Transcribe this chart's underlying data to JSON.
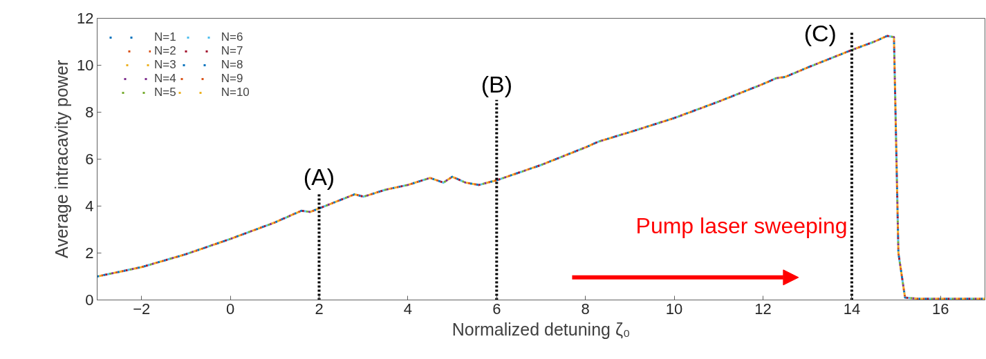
{
  "chart_data": {
    "type": "line",
    "xlabel": "Normalized detuning ζ₀",
    "ylabel": "Average intracavity power",
    "xlim": [
      -3,
      17
    ],
    "ylim": [
      0,
      12
    ],
    "xticks": [
      -2,
      0,
      2,
      4,
      6,
      8,
      10,
      12,
      14,
      16
    ],
    "yticks": [
      0,
      2,
      4,
      6,
      8,
      10,
      12
    ],
    "grid": false,
    "legend": "top left",
    "line_style": "dotted",
    "marker": "none",
    "x": [
      -3,
      -2,
      -1,
      0,
      1,
      1.6,
      1.8,
      2,
      2.4,
      2.8,
      3,
      3.5,
      4,
      4.5,
      4.8,
      5,
      5.3,
      5.6,
      6,
      7,
      8,
      8.3,
      9,
      10,
      11,
      12,
      12.3,
      12.5,
      13,
      14,
      14.5,
      14.8,
      14.95,
      15.05,
      15.2,
      15.5,
      16,
      17
    ],
    "series": [
      {
        "name": "N=1",
        "color": "#0072bd",
        "values": [
          1.0,
          1.4,
          1.95,
          2.6,
          3.3,
          3.8,
          3.75,
          3.9,
          4.2,
          4.5,
          4.4,
          4.7,
          4.9,
          5.2,
          5.0,
          5.25,
          5.0,
          4.9,
          5.1,
          5.75,
          6.5,
          6.75,
          7.15,
          7.75,
          8.45,
          9.2,
          9.45,
          9.5,
          9.9,
          10.65,
          11.0,
          11.25,
          11.2,
          2.0,
          0.1,
          0.05,
          0.05,
          0.05
        ]
      },
      {
        "name": "N=2",
        "color": "#d95319",
        "values": [
          1.0,
          1.4,
          1.95,
          2.6,
          3.3,
          3.8,
          3.75,
          3.9,
          4.2,
          4.5,
          4.4,
          4.7,
          4.9,
          5.2,
          5.0,
          5.25,
          5.0,
          4.9,
          5.1,
          5.75,
          6.5,
          6.75,
          7.15,
          7.75,
          8.45,
          9.2,
          9.45,
          9.5,
          9.9,
          10.65,
          11.0,
          11.25,
          11.2,
          2.0,
          0.1,
          0.05,
          0.05,
          0.05
        ]
      },
      {
        "name": "N=3",
        "color": "#edb120",
        "values": [
          1.0,
          1.4,
          1.95,
          2.6,
          3.3,
          3.8,
          3.75,
          3.9,
          4.2,
          4.5,
          4.4,
          4.7,
          4.9,
          5.2,
          5.0,
          5.25,
          5.0,
          4.9,
          5.1,
          5.75,
          6.5,
          6.75,
          7.15,
          7.75,
          8.45,
          9.2,
          9.45,
          9.5,
          9.9,
          10.65,
          11.0,
          11.25,
          11.2,
          2.0,
          0.1,
          0.05,
          0.05,
          0.05
        ]
      },
      {
        "name": "N=4",
        "color": "#7e2f8e",
        "values": [
          1.0,
          1.4,
          1.95,
          2.6,
          3.3,
          3.8,
          3.75,
          3.9,
          4.2,
          4.5,
          4.4,
          4.7,
          4.9,
          5.2,
          5.0,
          5.25,
          5.0,
          4.9,
          5.1,
          5.75,
          6.5,
          6.75,
          7.15,
          7.75,
          8.45,
          9.2,
          9.45,
          9.5,
          9.9,
          10.65,
          11.0,
          11.25,
          11.2,
          2.0,
          0.1,
          0.05,
          0.05,
          0.05
        ]
      },
      {
        "name": "N=5",
        "color": "#77ac30",
        "values": [
          1.0,
          1.4,
          1.95,
          2.6,
          3.3,
          3.8,
          3.75,
          3.9,
          4.2,
          4.5,
          4.4,
          4.7,
          4.9,
          5.2,
          5.0,
          5.25,
          5.0,
          4.9,
          5.1,
          5.75,
          6.5,
          6.75,
          7.15,
          7.75,
          8.45,
          9.2,
          9.45,
          9.5,
          9.9,
          10.65,
          11.0,
          11.25,
          11.2,
          2.0,
          0.1,
          0.05,
          0.05,
          0.05
        ]
      },
      {
        "name": "N=6",
        "color": "#4dbeee",
        "values": [
          1.0,
          1.4,
          1.95,
          2.6,
          3.3,
          3.8,
          3.75,
          3.9,
          4.2,
          4.5,
          4.4,
          4.7,
          4.9,
          5.2,
          5.0,
          5.25,
          5.0,
          4.9,
          5.1,
          5.75,
          6.5,
          6.75,
          7.15,
          7.75,
          8.45,
          9.2,
          9.45,
          9.5,
          9.9,
          10.65,
          11.0,
          11.25,
          11.2,
          2.0,
          0.1,
          0.05,
          0.05,
          0.05
        ]
      },
      {
        "name": "N=7",
        "color": "#a2142f",
        "values": [
          1.0,
          1.4,
          1.95,
          2.6,
          3.3,
          3.8,
          3.75,
          3.9,
          4.2,
          4.5,
          4.4,
          4.7,
          4.9,
          5.2,
          5.0,
          5.25,
          5.0,
          4.9,
          5.1,
          5.75,
          6.5,
          6.75,
          7.15,
          7.75,
          8.45,
          9.2,
          9.45,
          9.5,
          9.9,
          10.65,
          11.0,
          11.25,
          11.2,
          2.0,
          0.1,
          0.05,
          0.05,
          0.05
        ]
      },
      {
        "name": "N=8",
        "color": "#0072bd",
        "values": [
          1.0,
          1.4,
          1.95,
          2.6,
          3.3,
          3.8,
          3.75,
          3.9,
          4.2,
          4.5,
          4.4,
          4.7,
          4.9,
          5.2,
          5.0,
          5.25,
          5.0,
          4.9,
          5.1,
          5.75,
          6.5,
          6.75,
          7.15,
          7.75,
          8.45,
          9.2,
          9.45,
          9.5,
          9.9,
          10.65,
          11.0,
          11.25,
          11.2,
          2.0,
          0.1,
          0.05,
          0.05,
          0.05
        ]
      },
      {
        "name": "N=9",
        "color": "#d95319",
        "values": [
          1.0,
          1.4,
          1.95,
          2.6,
          3.3,
          3.8,
          3.75,
          3.9,
          4.2,
          4.5,
          4.4,
          4.7,
          4.9,
          5.2,
          5.0,
          5.25,
          5.0,
          4.9,
          5.1,
          5.75,
          6.5,
          6.75,
          7.15,
          7.75,
          8.45,
          9.2,
          9.45,
          9.5,
          9.9,
          10.65,
          11.0,
          11.25,
          11.2,
          2.0,
          0.1,
          0.05,
          0.05,
          0.05
        ]
      },
      {
        "name": "N=10",
        "color": "#edb120",
        "values": [
          1.0,
          1.4,
          1.95,
          2.6,
          3.3,
          3.8,
          3.75,
          3.9,
          4.2,
          4.5,
          4.4,
          4.7,
          4.9,
          5.2,
          5.0,
          5.25,
          5.0,
          4.9,
          5.1,
          5.75,
          6.5,
          6.75,
          7.15,
          7.75,
          8.45,
          9.2,
          9.45,
          9.5,
          9.9,
          10.65,
          11.0,
          11.25,
          11.2,
          2.0,
          0.1,
          0.05,
          0.05,
          0.05
        ]
      }
    ],
    "ref_lines": [
      {
        "axis": "x",
        "value": 2,
        "label": "(A)",
        "color": "#000000",
        "line_style": "dotted"
      },
      {
        "axis": "x",
        "value": 6,
        "label": "(B)",
        "color": "#000000",
        "line_style": "dotted"
      },
      {
        "axis": "x",
        "value": 14,
        "label": "(C)",
        "color": "#000000",
        "line_style": "dotted"
      }
    ],
    "annotations": [
      "Pump laser sweeping"
    ]
  }
}
